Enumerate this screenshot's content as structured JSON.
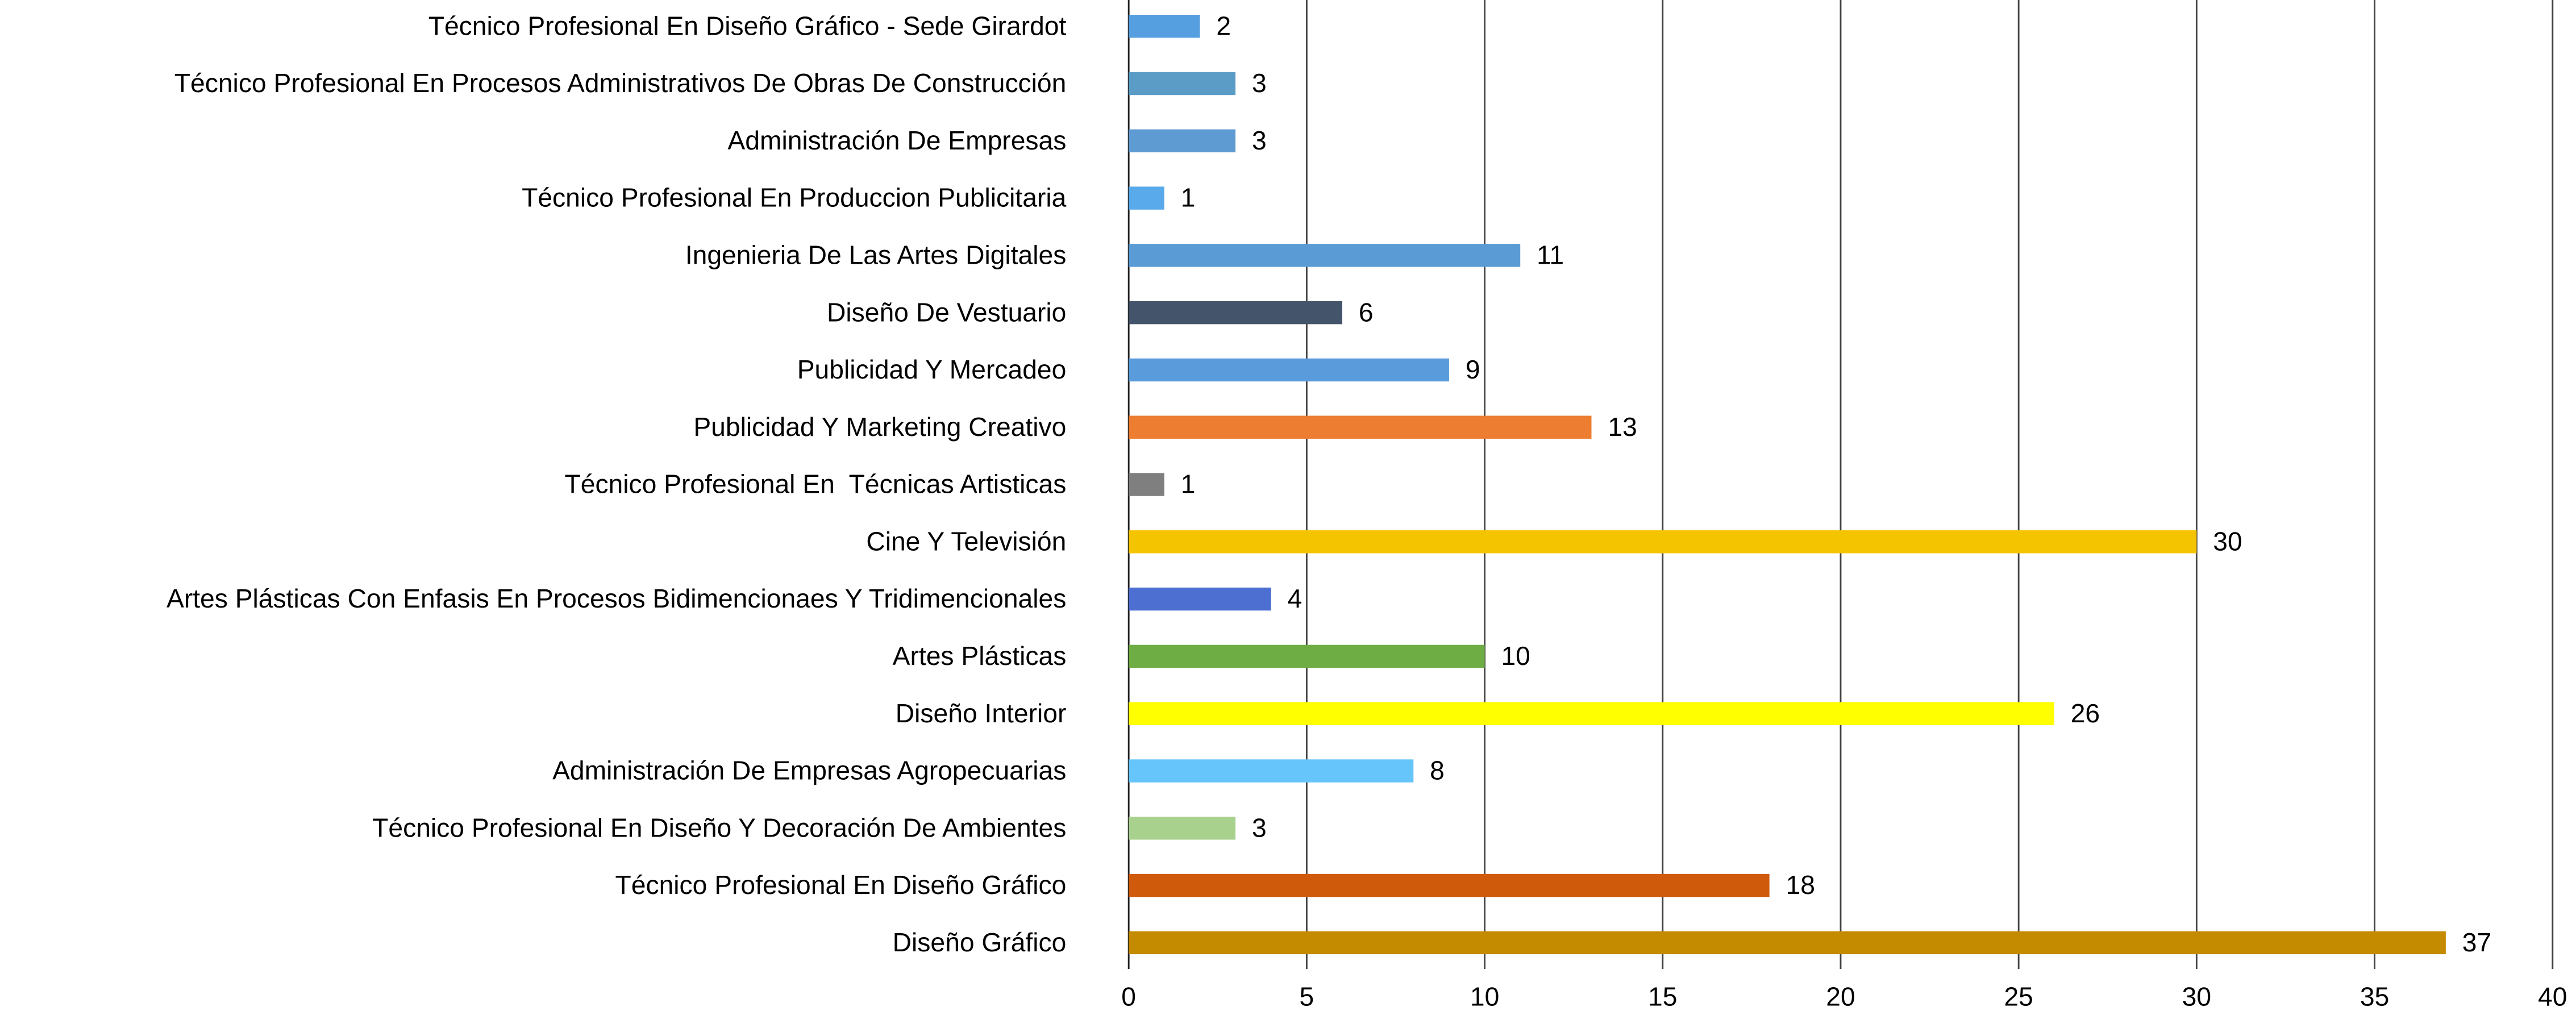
{
  "chart_data": {
    "type": "barh",
    "categories": [
      "Técnico Profesional En Diseño Gráfico - Sede Girardot",
      "Técnico Profesional En Procesos Administrativos De Obras De Construcción",
      "Administración De Empresas",
      "Técnico Profesional En Produccion Publicitaria",
      "Ingenieria De Las Artes Digitales",
      "Diseño De Vestuario",
      "Publicidad Y Mercadeo",
      "Publicidad Y Marketing Creativo",
      "Técnico Profesional En  Técnicas Artisticas",
      "Cine Y Televisión",
      "Artes Plásticas Con Enfasis En Procesos Bidimencionaes Y Tridimencionales",
      "Artes Plásticas",
      "Diseño Interior",
      "Administración De Empresas Agropecuarias",
      "Técnico Profesional En Diseño Y Decoración De Ambientes",
      "Técnico Profesional En Diseño Gráfico",
      "Diseño Gráfico"
    ],
    "values": [
      2,
      3,
      3,
      1,
      11,
      6,
      9,
      13,
      1,
      30,
      4,
      10,
      26,
      8,
      3,
      18,
      37
    ],
    "colors": [
      "#559ee0",
      "#5a9cc6",
      "#5e9bd2",
      "#58aaea",
      "#5a9bd6",
      "#44546a",
      "#5a9cdb",
      "#ed7d31",
      "#7f7f7f",
      "#f5c400",
      "#4e6fd2",
      "#6ead43",
      "#ffff00",
      "#66c5fa",
      "#a9d18e",
      "#d05a0c",
      "#c48a00"
    ],
    "xlim": [
      0,
      40
    ],
    "xticks": [
      0,
      5,
      10,
      15,
      20,
      25,
      30,
      35,
      40
    ],
    "grid": true
  }
}
